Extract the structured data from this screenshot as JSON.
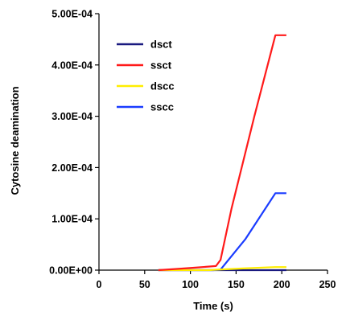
{
  "chart_data": {
    "type": "line",
    "title": "",
    "xlabel": "Time (s)",
    "ylabel": "Cytosine deamination",
    "xlim": [
      0,
      250
    ],
    "ylim": [
      0,
      0.0005
    ],
    "x_ticks": [
      0,
      50,
      100,
      150,
      200,
      250
    ],
    "x_tick_labels": [
      "0",
      "50",
      "100",
      "150",
      "200",
      "250"
    ],
    "y_ticks": [
      0,
      0.0001,
      0.0002,
      0.0003,
      0.0004,
      0.0005
    ],
    "y_tick_labels": [
      "0.00E+00",
      "1.00E-04",
      "2.00E-04",
      "3.00E-04",
      "4.00E-04",
      "5.00E-04"
    ],
    "grid": false,
    "legend_position": "top-left",
    "series": [
      {
        "name": "dsct",
        "color": "#1a1a80",
        "points": [
          [
            65,
            0
          ],
          [
            90,
            0
          ],
          [
            120,
            0
          ],
          [
            130,
            0
          ],
          [
            160,
            0
          ],
          [
            190,
            0
          ],
          [
            205,
            0
          ]
        ]
      },
      {
        "name": "ssct",
        "color": "#ff1a1a",
        "points": [
          [
            65,
            0
          ],
          [
            90,
            3e-06
          ],
          [
            110,
            5.5e-06
          ],
          [
            128,
            8e-06
          ],
          [
            133,
            2e-05
          ],
          [
            145,
            0.00012
          ],
          [
            170,
            0.0003
          ],
          [
            193,
            0.000458
          ],
          [
            205,
            0.000458
          ]
        ]
      },
      {
        "name": "dscc",
        "color": "#ffee00",
        "points": [
          [
            65,
            0
          ],
          [
            120,
            0
          ],
          [
            130,
            1e-06
          ],
          [
            160,
            3.5e-06
          ],
          [
            193,
            6e-06
          ],
          [
            205,
            6e-06
          ]
        ]
      },
      {
        "name": "sscc",
        "color": "#1a3cff",
        "points": [
          [
            65,
            0
          ],
          [
            125,
            0
          ],
          [
            133,
            1e-06
          ],
          [
            160,
            6e-05
          ],
          [
            193,
            0.00015
          ],
          [
            205,
            0.00015
          ]
        ]
      }
    ]
  }
}
